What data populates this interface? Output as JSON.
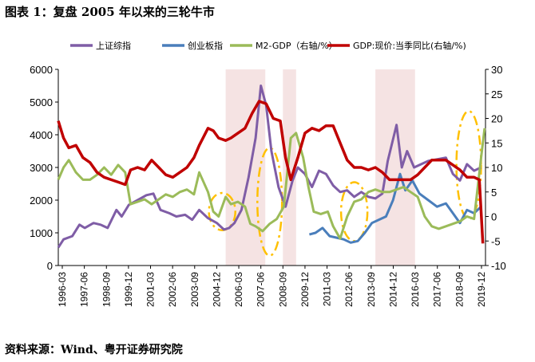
{
  "header": {
    "title": "图表 1：复盘 2005 年以来的三轮牛市"
  },
  "footer": {
    "source": "资料来源：Wind、粤开证券研究院"
  },
  "chart_data": {
    "type": "line",
    "legend_position": "top",
    "grid": false,
    "left_axis": {
      "min": 0,
      "max": 6000,
      "ticks": [
        0,
        1000,
        2000,
        3000,
        4000,
        5000,
        6000
      ]
    },
    "right_axis": {
      "min": -10,
      "max": 30,
      "ticks": [
        -10,
        -5,
        0,
        5,
        10,
        15,
        20,
        25,
        30
      ]
    },
    "x_tick_labels": [
      "1996-03",
      "1997-06",
      "1998-09",
      "1999-12",
      "2001-03",
      "2002-06",
      "2003-09",
      "2004-12",
      "2006-03",
      "2007-06",
      "2008-09",
      "2009-12",
      "2011-03",
      "2012-06",
      "2013-09",
      "2014-12",
      "2016-03",
      "2017-06",
      "2018-09",
      "2019-12"
    ],
    "shaded_periods": [
      {
        "start": 2005.5,
        "end": 2007.75
      },
      {
        "start": 2008.75,
        "end": 2009.5
      },
      {
        "start": 2014.0,
        "end": 2016.25
      }
    ],
    "series": [
      {
        "name": "上证综指",
        "color": "#7f5da6",
        "axis": "left",
        "points": [
          [
            1996.0,
            550
          ],
          [
            1996.3,
            800
          ],
          [
            1996.8,
            900
          ],
          [
            1997.2,
            1250
          ],
          [
            1997.5,
            1150
          ],
          [
            1998.0,
            1300
          ],
          [
            1998.4,
            1250
          ],
          [
            1998.8,
            1150
          ],
          [
            1999.3,
            1700
          ],
          [
            1999.6,
            1500
          ],
          [
            2000.0,
            1850
          ],
          [
            2000.5,
            2000
          ],
          [
            2001.0,
            2150
          ],
          [
            2001.4,
            2200
          ],
          [
            2001.8,
            1700
          ],
          [
            2002.3,
            1600
          ],
          [
            2002.7,
            1500
          ],
          [
            2003.2,
            1550
          ],
          [
            2003.6,
            1400
          ],
          [
            2004.0,
            1700
          ],
          [
            2004.5,
            1450
          ],
          [
            2005.0,
            1300
          ],
          [
            2005.4,
            1100
          ],
          [
            2005.7,
            1150
          ],
          [
            2006.0,
            1300
          ],
          [
            2006.4,
            1700
          ],
          [
            2006.8,
            2700
          ],
          [
            2007.2,
            3900
          ],
          [
            2007.5,
            5500
          ],
          [
            2007.8,
            4900
          ],
          [
            2008.1,
            3500
          ],
          [
            2008.5,
            2400
          ],
          [
            2008.9,
            1800
          ],
          [
            2009.3,
            2600
          ],
          [
            2009.6,
            3000
          ],
          [
            2010.0,
            2800
          ],
          [
            2010.4,
            2400
          ],
          [
            2010.8,
            2900
          ],
          [
            2011.2,
            2800
          ],
          [
            2011.6,
            2450
          ],
          [
            2012.0,
            2250
          ],
          [
            2012.4,
            2300
          ],
          [
            2012.8,
            2100
          ],
          [
            2013.2,
            2250
          ],
          [
            2013.6,
            2100
          ],
          [
            2014.0,
            2050
          ],
          [
            2014.4,
            2200
          ],
          [
            2014.7,
            3200
          ],
          [
            2015.2,
            4300
          ],
          [
            2015.5,
            3000
          ],
          [
            2015.8,
            3500
          ],
          [
            2016.2,
            3000
          ],
          [
            2016.6,
            3100
          ],
          [
            2017.0,
            3200
          ],
          [
            2017.5,
            3250
          ],
          [
            2018.0,
            3300
          ],
          [
            2018.4,
            2800
          ],
          [
            2018.8,
            2600
          ],
          [
            2019.2,
            3100
          ],
          [
            2019.6,
            2900
          ],
          [
            2020.0,
            3000
          ]
        ]
      },
      {
        "name": "创业板指",
        "color": "#4a7ebb",
        "axis": "left",
        "points": [
          [
            2010.25,
            950
          ],
          [
            2010.6,
            1000
          ],
          [
            2011.0,
            1150
          ],
          [
            2011.4,
            900
          ],
          [
            2011.8,
            850
          ],
          [
            2012.2,
            800
          ],
          [
            2012.6,
            700
          ],
          [
            2013.0,
            750
          ],
          [
            2013.4,
            1000
          ],
          [
            2013.8,
            1300
          ],
          [
            2014.2,
            1400
          ],
          [
            2014.6,
            1500
          ],
          [
            2015.0,
            2000
          ],
          [
            2015.4,
            2800
          ],
          [
            2015.7,
            2300
          ],
          [
            2016.1,
            2600
          ],
          [
            2016.5,
            2200
          ],
          [
            2017.0,
            2000
          ],
          [
            2017.5,
            1800
          ],
          [
            2018.0,
            1900
          ],
          [
            2018.4,
            1600
          ],
          [
            2018.8,
            1300
          ],
          [
            2019.2,
            1700
          ],
          [
            2019.6,
            1600
          ],
          [
            2020.0,
            1800
          ]
        ]
      },
      {
        "name": "M2-GDP（右轴/%）",
        "color": "#9bbb59",
        "axis": "right",
        "points": [
          [
            1996.0,
            7.5
          ],
          [
            1996.3,
            10
          ],
          [
            1996.6,
            11.5
          ],
          [
            1997.0,
            9
          ],
          [
            1997.4,
            7.5
          ],
          [
            1997.8,
            7.5
          ],
          [
            1998.2,
            8.5
          ],
          [
            1998.6,
            10
          ],
          [
            1999.0,
            8.5
          ],
          [
            1999.4,
            10.5
          ],
          [
            1999.8,
            9
          ],
          [
            2000.1,
            2.5
          ],
          [
            2000.5,
            3
          ],
          [
            2000.9,
            3.5
          ],
          [
            2001.3,
            2.5
          ],
          [
            2001.7,
            3.5
          ],
          [
            2002.1,
            4.5
          ],
          [
            2002.5,
            4
          ],
          [
            2002.9,
            5
          ],
          [
            2003.3,
            5.5
          ],
          [
            2003.7,
            4.5
          ],
          [
            2004.0,
            9
          ],
          [
            2004.5,
            5
          ],
          [
            2004.8,
            1
          ],
          [
            2005.1,
            0
          ],
          [
            2005.5,
            4
          ],
          [
            2005.8,
            2.5
          ],
          [
            2006.2,
            3
          ],
          [
            2006.6,
            2
          ],
          [
            2006.9,
            -1.5
          ],
          [
            2007.2,
            -2
          ],
          [
            2007.6,
            -3
          ],
          [
            2008.0,
            -1.5
          ],
          [
            2008.4,
            -0.5
          ],
          [
            2008.8,
            2
          ],
          [
            2009.2,
            16
          ],
          [
            2009.5,
            17
          ],
          [
            2009.9,
            12
          ],
          [
            2010.2,
            6
          ],
          [
            2010.5,
            1
          ],
          [
            2010.9,
            0.5
          ],
          [
            2011.3,
            1
          ],
          [
            2011.6,
            -2
          ],
          [
            2012.0,
            -4.5
          ],
          [
            2012.4,
            0
          ],
          [
            2012.8,
            3
          ],
          [
            2013.2,
            3.5
          ],
          [
            2013.6,
            5
          ],
          [
            2014.0,
            5.5
          ],
          [
            2014.4,
            5
          ],
          [
            2014.8,
            5
          ],
          [
            2015.2,
            5.5
          ],
          [
            2015.6,
            6
          ],
          [
            2016.0,
            5
          ],
          [
            2016.4,
            4
          ],
          [
            2016.8,
            0
          ],
          [
            2017.2,
            -2
          ],
          [
            2017.6,
            -2.5
          ],
          [
            2018.0,
            -2
          ],
          [
            2018.4,
            -1.5
          ],
          [
            2018.8,
            -1
          ],
          [
            2019.2,
            0
          ],
          [
            2019.6,
            -0.5
          ],
          [
            2020.0,
            12
          ],
          [
            2020.2,
            18
          ]
        ]
      },
      {
        "name": "GDP:现价:当季同比(右轴/%)",
        "color": "#c00000",
        "axis": "right",
        "points": [
          [
            1996.0,
            19.5
          ],
          [
            1996.3,
            16
          ],
          [
            1996.6,
            14
          ],
          [
            1997.0,
            14.5
          ],
          [
            1997.4,
            12
          ],
          [
            1997.8,
            11
          ],
          [
            1998.2,
            9
          ],
          [
            1998.6,
            8
          ],
          [
            1999.0,
            7.5
          ],
          [
            1999.4,
            7
          ],
          [
            1999.8,
            6.5
          ],
          [
            2000.1,
            9.5
          ],
          [
            2000.5,
            10
          ],
          [
            2000.9,
            9.5
          ],
          [
            2001.3,
            11.5
          ],
          [
            2001.7,
            10
          ],
          [
            2002.1,
            8.5
          ],
          [
            2002.5,
            8
          ],
          [
            2002.9,
            9
          ],
          [
            2003.3,
            10
          ],
          [
            2003.7,
            12
          ],
          [
            2004.0,
            14.5
          ],
          [
            2004.5,
            18
          ],
          [
            2004.8,
            17.5
          ],
          [
            2005.1,
            16
          ],
          [
            2005.5,
            15.5
          ],
          [
            2005.8,
            16
          ],
          [
            2006.2,
            17
          ],
          [
            2006.6,
            18
          ],
          [
            2007.0,
            21
          ],
          [
            2007.4,
            23.5
          ],
          [
            2007.8,
            23
          ],
          [
            2008.2,
            20
          ],
          [
            2008.6,
            19.5
          ],
          [
            2008.9,
            12
          ],
          [
            2009.2,
            7.5
          ],
          [
            2009.6,
            12
          ],
          [
            2010.0,
            17
          ],
          [
            2010.4,
            18
          ],
          [
            2010.8,
            17.5
          ],
          [
            2011.2,
            18.5
          ],
          [
            2011.6,
            18.5
          ],
          [
            2012.0,
            15
          ],
          [
            2012.4,
            11.5
          ],
          [
            2012.8,
            10
          ],
          [
            2013.2,
            10
          ],
          [
            2013.6,
            9.5
          ],
          [
            2014.0,
            10
          ],
          [
            2014.4,
            9
          ],
          [
            2014.8,
            7.5
          ],
          [
            2015.2,
            7.5
          ],
          [
            2015.6,
            7.5
          ],
          [
            2016.0,
            7.5
          ],
          [
            2016.4,
            8.5
          ],
          [
            2016.8,
            10
          ],
          [
            2017.2,
            11.5
          ],
          [
            2017.6,
            11.5
          ],
          [
            2018.0,
            11.5
          ],
          [
            2018.4,
            10.5
          ],
          [
            2018.8,
            9.5
          ],
          [
            2019.2,
            8
          ],
          [
            2019.6,
            8
          ],
          [
            2019.9,
            7.5
          ],
          [
            2020.1,
            -5.5
          ]
        ]
      }
    ],
    "annotations": {
      "type": "dashed-loops",
      "color": "#ffc000",
      "note": "yellow dash-dot loops marking trough periods"
    }
  }
}
